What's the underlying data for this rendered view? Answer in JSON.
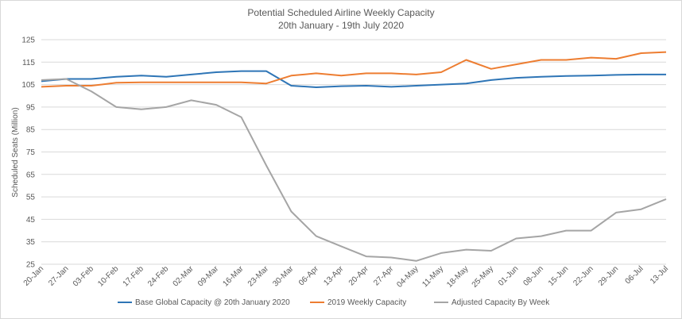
{
  "chart_data": {
    "type": "line",
    "title": "Potential Scheduled Airline Weekly Capacity",
    "subtitle": "20th January - 19th July 2020",
    "ylabel": "Scheduled Seats (Million)",
    "xlabel": "",
    "ylim": [
      25,
      125
    ],
    "yticks": [
      25,
      35,
      45,
      55,
      65,
      75,
      85,
      95,
      105,
      115,
      125
    ],
    "grid": true,
    "legend_position": "bottom",
    "categories": [
      "20-Jan",
      "27-Jan",
      "03-Feb",
      "10-Feb",
      "17-Feb",
      "24-Feb",
      "02-Mar",
      "09-Mar",
      "16-Mar",
      "23-Mar",
      "30-Mar",
      "06-Apr",
      "13-Apr",
      "20-Apr",
      "27-Apr",
      "04-May",
      "11-May",
      "18-May",
      "25-May",
      "01-Jun",
      "08-Jun",
      "15-Jun",
      "22-Jun",
      "29-Jun",
      "06-Jul",
      "13-Jul"
    ],
    "series": [
      {
        "name": "Base Global Capacity @ 20th January 2020",
        "color": "#2e75b6",
        "values": [
          106.5,
          107.5,
          107.5,
          108.5,
          109,
          108.5,
          109.5,
          110.5,
          111,
          111,
          104.5,
          103.8,
          104.3,
          104.5,
          104,
          104.5,
          105,
          105.5,
          107,
          108,
          108.5,
          108.8,
          109,
          109.3,
          109.5,
          109.5
        ]
      },
      {
        "name": "2019 Weekly Capacity",
        "color": "#ed7d31",
        "values": [
          104,
          104.5,
          104.5,
          105.8,
          106,
          106,
          106,
          106,
          106,
          105.5,
          109,
          110,
          109,
          110,
          110,
          109.5,
          110.5,
          116,
          112,
          114,
          116,
          116,
          117,
          116.5,
          119,
          119.5
        ]
      },
      {
        "name": "Adjusted Capacity By Week",
        "color": "#a5a5a5",
        "values": [
          107,
          107.5,
          102,
          95,
          94,
          95,
          98,
          96,
          90.5,
          69,
          48.5,
          37.5,
          33,
          28.5,
          28,
          26.5,
          30,
          31.5,
          31,
          36.5,
          37.5,
          40,
          40,
          48,
          49.5,
          54
        ]
      }
    ]
  }
}
